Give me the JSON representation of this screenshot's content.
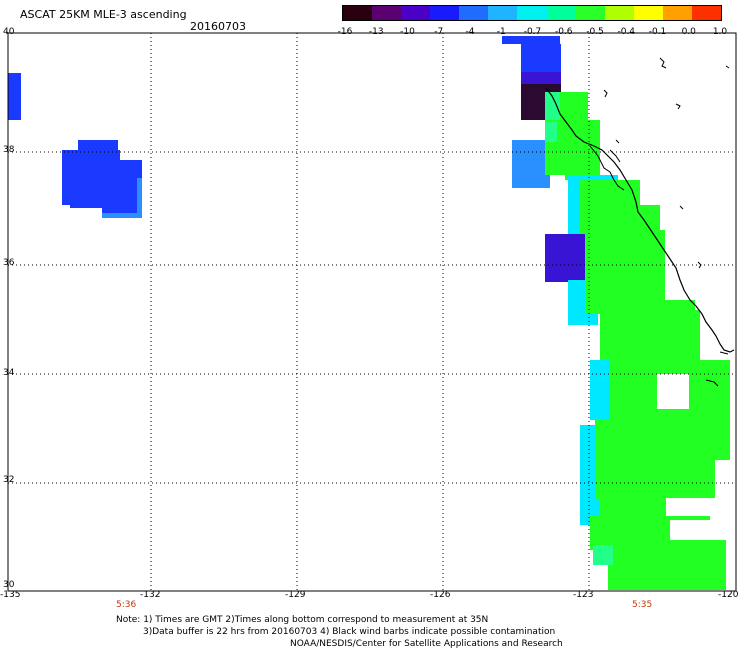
{
  "header": {
    "title": "ASCAT 25KM MLE-3 ascending",
    "date": "20160703"
  },
  "colorbar": {
    "labels": [
      "-16",
      "-13",
      "-10",
      "-7",
      "-4",
      "-1",
      "-0.7",
      "-0.6",
      "-0.5",
      "-0.4",
      "-0.1",
      "0.0",
      "1.0"
    ],
    "colors": [
      "#2a0010",
      "#5a0070",
      "#4b00c8",
      "#1a1aff",
      "#1f6cff",
      "#1fb4ff",
      "#00f0f0",
      "#00ff9a",
      "#2aff2a",
      "#b0ff00",
      "#ffff00",
      "#ffa000",
      "#ff3000"
    ]
  },
  "axes": {
    "lat_labels": [
      "40",
      "38",
      "36",
      "34",
      "32",
      "30"
    ],
    "lon_labels": [
      "-135",
      "-132",
      "-129",
      "-126",
      "-123",
      "-120"
    ]
  },
  "times": [
    "5:36",
    "5:35"
  ],
  "notes": [
    "Note: 1) Times are GMT 2)Times along bottom correspond to measurement at 35N",
    "3)Data buffer is 22 hrs from 20160703 4) Black wind barbs indicate possible contamination",
    "NOAA/NESDIS/Center for Satellite Applications and Research"
  ],
  "colors": {
    "blue": "#1a3aff",
    "violet": "#3a14d4",
    "dark_purple": "#2a0a30",
    "sky": "#2a90ff",
    "cyan": "#00e8ff",
    "green": "#22ff22",
    "mint": "#22ff88"
  }
}
